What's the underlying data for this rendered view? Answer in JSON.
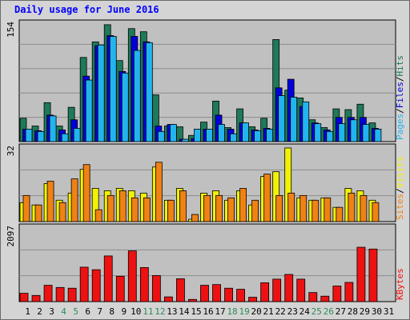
{
  "chart_data": {
    "type": "bar",
    "title": "Daily usage for June 2016",
    "x_labels": [
      "1",
      "2",
      "3",
      "4",
      "5",
      "6",
      "7",
      "8",
      "9",
      "10",
      "11",
      "12",
      "13",
      "14",
      "15",
      "16",
      "17",
      "18",
      "19",
      "20",
      "21",
      "22",
      "23",
      "24",
      "25",
      "26",
      "27",
      "28",
      "29",
      "30",
      "31"
    ],
    "weekend_days": [
      4,
      5,
      11,
      12,
      18,
      19,
      25,
      26
    ],
    "panels": [
      {
        "name": "hits-files-pages",
        "ymax_label": "154",
        "ymax": 154,
        "legend": [
          "Pages",
          "/",
          "Files",
          "/",
          "Hits"
        ],
        "series": [
          {
            "name": "Hits",
            "color": "#1e7a58",
            "values": [
              30,
              20,
              50,
              20,
              44,
              108,
              128,
              150,
              104,
              145,
              141,
              60,
              20,
              19,
              8,
              25,
              52,
              18,
              42,
              19,
              30,
              131,
              66,
              56,
              28,
              18,
              42,
              41,
              48,
              24,
              0
            ]
          },
          {
            "name": "Files",
            "color": "#0000dd",
            "values": [
              16,
              14,
              34,
              15,
              28,
              84,
              123,
              136,
              90,
              135,
              128,
              20,
              22,
              3,
              4,
              16,
              34,
              16,
              24,
              15,
              17,
              69,
              80,
              45,
              24,
              15,
              31,
              31,
              31,
              17,
              0
            ]
          },
          {
            "name": "Pages",
            "color": "#22b4f0",
            "values": [
              16,
              13,
              33,
              10,
              17,
              79,
              124,
              135,
              88,
              117,
              127,
              13,
              22,
              3,
              16,
              16,
              22,
              10,
              24,
              14,
              16,
              59,
              57,
              51,
              23,
              13,
              23,
              28,
              22,
              16,
              0
            ]
          }
        ]
      },
      {
        "name": "visits-sites",
        "ymax_label": "32",
        "ymax": 32,
        "legend": [
          "Sites",
          "/",
          "Visits"
        ],
        "series": [
          {
            "name": "Visits",
            "color": "#f2f200",
            "values": [
              8,
              7,
              16,
              9,
              12,
              22,
              14,
              13,
              14,
              13,
              12,
              23,
              9,
              14,
              1,
              12,
              13,
              9,
              13,
              7,
              19,
              21,
              31,
              10,
              9,
              10,
              6,
              14,
              13,
              9,
              0
            ]
          },
          {
            "name": "Sites",
            "color": "#f08214",
            "values": [
              11,
              7,
              17,
              8,
              18,
              24,
              5,
              11,
              13,
              10,
              10,
              25,
              9,
              13,
              3,
              11,
              11,
              10,
              14,
              9,
              20,
              11,
              12,
              11,
              9,
              10,
              6,
              12,
              11,
              8,
              0
            ]
          }
        ]
      },
      {
        "name": "kbytes",
        "ymax_label": "2097",
        "ymax": 2097,
        "legend": [
          "KBytes"
        ],
        "series": [
          {
            "name": "KBytes",
            "color": "#ee1111",
            "values": [
              230,
              170,
              450,
              390,
              370,
              950,
              880,
              1260,
              700,
              1400,
              940,
              720,
              130,
              630,
              60,
              450,
              470,
              370,
              340,
              120,
              520,
              620,
              750,
              620,
              250,
              150,
              430,
              530,
              1500,
              1450,
              0
            ]
          }
        ]
      }
    ]
  }
}
